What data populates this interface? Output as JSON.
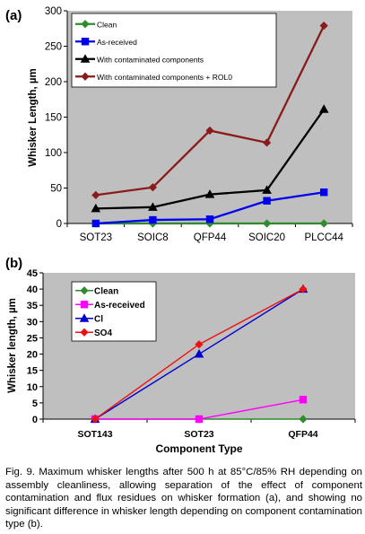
{
  "figure": {
    "caption": "Fig. 9. Maximum whisker lengths after 500 h at 85°C/85% RH depending on assembly cleanliness, allowing separation of the effect of component contamination and flux residues on whisker formation (a), and showing no significant difference in whisker length depending on component contamination type (b)."
  },
  "chart_data": [
    {
      "panel_label": "(a)",
      "type": "line",
      "ylabel": "Whisker Length, µm",
      "xlabel": "",
      "ylim": [
        0,
        300
      ],
      "yticks": [
        0,
        50,
        100,
        150,
        200,
        250,
        300
      ],
      "categories": [
        "SOT23",
        "SOIC8",
        "QFP44",
        "SOIC20",
        "PLCC44"
      ],
      "grid": false,
      "legend_position": "top-right inside plot",
      "series": [
        {
          "name": "Clean",
          "values": [
            0,
            0,
            0,
            0,
            0
          ],
          "color": "#2e8b2e",
          "marker": "diamond"
        },
        {
          "name": "As-received",
          "values": [
            0,
            5,
            6,
            32,
            44
          ],
          "color": "#0000ee",
          "marker": "square"
        },
        {
          "name": "With contaminated components",
          "values": [
            21,
            23,
            41,
            47,
            161
          ],
          "color": "#000000",
          "marker": "triangle"
        },
        {
          "name": "With contaminated components + ROL0",
          "values": [
            40,
            51,
            131,
            114,
            279
          ],
          "color": "#8b1a1a",
          "marker": "diamond"
        }
      ]
    },
    {
      "panel_label": "(b)",
      "type": "line",
      "ylabel": "Whisker length, µm",
      "xlabel": "Component Type",
      "ylim": [
        0,
        45
      ],
      "yticks": [
        0,
        5,
        10,
        15,
        20,
        25,
        30,
        35,
        40,
        45
      ],
      "categories": [
        "SOT143",
        "SOT23",
        "QFP44"
      ],
      "grid": false,
      "legend_position": "top-left inside plot",
      "series": [
        {
          "name": "Clean",
          "values": [
            0,
            0,
            0
          ],
          "color": "#2e8b2e",
          "marker": "diamond"
        },
        {
          "name": "As-received",
          "values": [
            0,
            0,
            6
          ],
          "color": "#ff00ff",
          "marker": "square"
        },
        {
          "name": "Cl",
          "values": [
            0,
            20,
            40
          ],
          "color": "#0000cc",
          "marker": "triangle"
        },
        {
          "name": "SO4",
          "values": [
            0,
            23,
            40
          ],
          "color": "#ee1111",
          "marker": "diamond"
        }
      ]
    }
  ]
}
